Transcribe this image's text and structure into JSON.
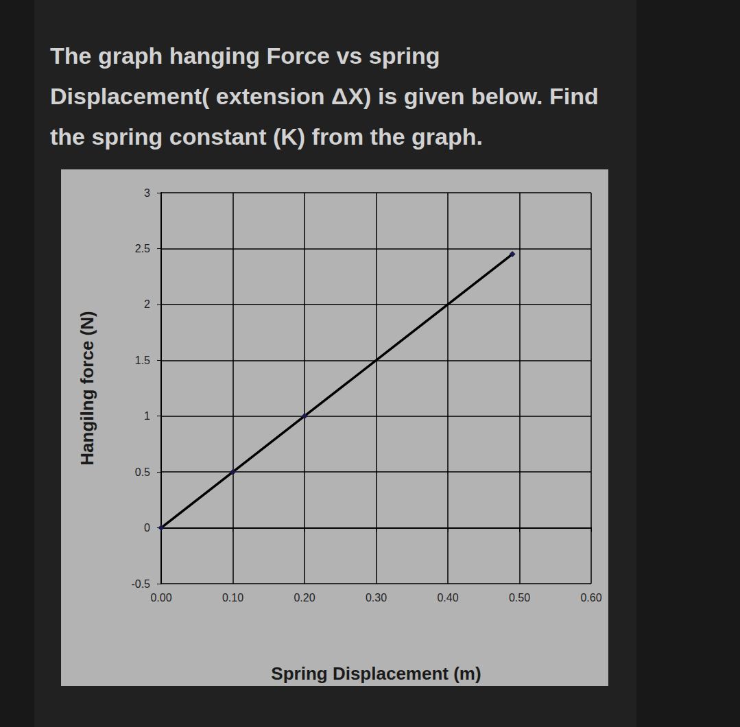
{
  "chart_data": {
    "type": "line",
    "title": "The graph hanging Force vs spring Displacement( extension ΔX) is given below. Find the spring constant (K) from the graph.",
    "x_label": "Spring Displacement (m)",
    "y_label": "Hangilng force (N)",
    "x": [
      0,
      0.1,
      0.2,
      0.49
    ],
    "values": [
      0,
      0.5,
      1.0,
      2.45
    ],
    "color": "#000000",
    "marker": "diamond",
    "xlim": [
      0,
      0.6
    ],
    "xticks": [
      {
        "value": 0,
        "label": "0.00"
      },
      {
        "value": 0.1,
        "label": "0.10"
      },
      {
        "value": 0.2,
        "label": "0.20"
      },
      {
        "value": 0.3,
        "label": "0.30"
      },
      {
        "value": 0.4,
        "label": "0.40"
      },
      {
        "value": 0.5,
        "label": "0.50"
      },
      {
        "value": 0.6,
        "label": "0.60"
      }
    ],
    "ylim": [
      -0.5,
      3
    ],
    "yticks": [
      -0.5,
      0,
      0.5,
      1,
      1.5,
      2,
      2.5,
      3
    ],
    "grid": true
  }
}
